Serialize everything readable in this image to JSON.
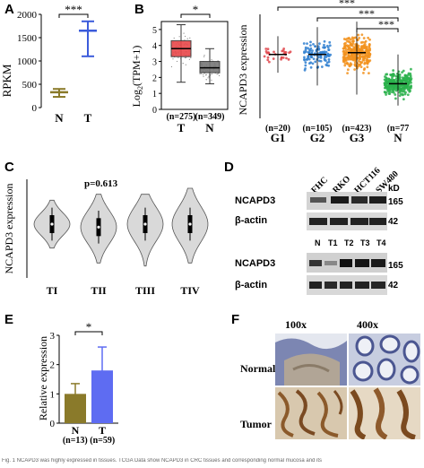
{
  "panels": {
    "A": {
      "letter": "A",
      "ylabel": "RPKM",
      "categories": [
        "N",
        "T"
      ],
      "yticks": [
        "0",
        "500",
        "1000",
        "1500",
        "2000"
      ],
      "significance": "***"
    },
    "B_left": {
      "letter": "B",
      "ylabel_main": "Log",
      "ylabel_sub": "2",
      "ylabel_rest": "(TPM+1)",
      "categories": [
        "T",
        "N"
      ],
      "counts": [
        "(n=275)",
        "(n=349)"
      ],
      "yticks": [
        "0",
        "1",
        "2",
        "3",
        "4",
        "5"
      ],
      "significance": "*"
    },
    "B_right": {
      "ylabel": "NCAPD3 expression",
      "categories": [
        "G1",
        "G2",
        "G3",
        "N"
      ],
      "counts": [
        "(n=20)",
        "(n=105)",
        "(n=423)",
        "(n=77"
      ],
      "significance": [
        "***",
        "***",
        "***"
      ]
    },
    "C": {
      "letter": "C",
      "ylabel": "NCAPD3 expression",
      "pvalue": "p=0.613",
      "categories": [
        "TI",
        "TII",
        "TIII",
        "TIV"
      ]
    },
    "D": {
      "letter": "D",
      "cell_lines": [
        "FHC",
        "RKO",
        "HCT116",
        "SW480"
      ],
      "kd_unit": "kD",
      "rows_top": [
        {
          "label": "NCAPD3",
          "kd": "165"
        },
        {
          "label": "β-actin",
          "kd": "42"
        }
      ],
      "tissue_lanes": [
        "N",
        "T1",
        "T2",
        "T3",
        "T4"
      ],
      "rows_bottom": [
        {
          "label": "NCAPD3",
          "kd": "165"
        },
        {
          "label": "β-actin",
          "kd": "42"
        }
      ]
    },
    "E": {
      "letter": "E",
      "ylabel": "Relative expression",
      "categories": [
        "N",
        "T"
      ],
      "counts": [
        "(n=13)",
        "(n=59)"
      ],
      "yticks": [
        "0",
        "1",
        "2",
        "3"
      ],
      "significance": "*"
    },
    "F": {
      "letter": "F",
      "magnifications": [
        "100x",
        "400x"
      ],
      "rows": [
        "Normal",
        "Tumor"
      ]
    }
  },
  "caption": "Fig. 1 NCAPD3 was highly expressed in tissues. TCGA Data show NCAPD3 in CRC tissues and corresponding normal mucosa and its",
  "chart_data": [
    {
      "type": "bar",
      "panel": "A",
      "categories": [
        "N",
        "T"
      ],
      "values": [
        330,
        1650
      ],
      "error": [
        [
          230,
          400
        ],
        [
          1100,
          1850
        ]
      ],
      "ylabel": "RPKM",
      "ylim": [
        0,
        2000
      ],
      "colors": [
        "#8a7a2a",
        "#3b5bdb"
      ]
    },
    {
      "type": "box",
      "panel": "B",
      "categories": [
        "T",
        "N"
      ],
      "medians": [
        3.8,
        2.6
      ],
      "q1": [
        3.3,
        2.3
      ],
      "q3": [
        4.3,
        3.0
      ],
      "whisker_low": [
        1.7,
        1.6
      ],
      "whisker_high": [
        5.3,
        3.8
      ],
      "n": [
        275,
        349
      ],
      "ylim": [
        0,
        5.5
      ],
      "colors": [
        "#e8484a",
        "#777777"
      ]
    },
    {
      "type": "scatter",
      "panel": "B-right",
      "categories": [
        "G1",
        "G2",
        "G3",
        "N"
      ],
      "medians": [
        4.0,
        4.0,
        4.1,
        2.4
      ],
      "ranges": [
        [
          3.0,
          5.0
        ],
        [
          2.3,
          5.5
        ],
        [
          1.8,
          5.8
        ],
        [
          1.2,
          4.0
        ]
      ],
      "n": [
        20,
        105,
        423,
        77
      ],
      "colors": [
        "#e0474c",
        "#2f7fd0",
        "#f2921d",
        "#2bb24c"
      ]
    },
    {
      "type": "violin",
      "panel": "C",
      "categories": [
        "TI",
        "TII",
        "TIII",
        "TIV"
      ],
      "medians": [
        3.8,
        3.7,
        3.8,
        3.8
      ],
      "ranges": [
        [
          3.0,
          4.6
        ],
        [
          2.5,
          4.8
        ],
        [
          2.4,
          4.8
        ],
        [
          2.5,
          5.0
        ]
      ]
    },
    {
      "type": "bar",
      "panel": "E",
      "categories": [
        "N",
        "T"
      ],
      "values": [
        1.0,
        1.8
      ],
      "error": [
        [
          0.65,
          1.35
        ],
        [
          1.0,
          2.6
        ]
      ],
      "ylim": [
        0,
        3
      ],
      "colors": [
        "#8a7a2a",
        "#5e6cf2"
      ]
    }
  ]
}
